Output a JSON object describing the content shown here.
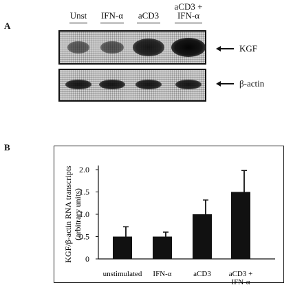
{
  "panel_a": {
    "letter": "A",
    "lanes": [
      "Unst",
      "IFN-α",
      "aCD3",
      "aCD3 +\nIFN-α"
    ],
    "blots": [
      {
        "label": "KGF",
        "intensity": [
          0.35,
          0.4,
          0.85,
          1.0
        ]
      },
      {
        "label": "β-actin",
        "intensity": [
          0.85,
          0.85,
          0.85,
          0.85
        ]
      }
    ]
  },
  "panel_b": {
    "letter": "B",
    "ylabel_line1": "KGF/β-actin RNA transcripts",
    "ylabel_line2": "(arbitrary units)"
  },
  "chart_data": {
    "type": "bar",
    "categories": [
      "unstimulated",
      "IFN-α",
      "aCD3",
      "aCD3 +\nIFN-α"
    ],
    "values": [
      0.5,
      0.5,
      1.0,
      1.5
    ],
    "errors": [
      0.22,
      0.1,
      0.32,
      0.48
    ],
    "ylabel": "KGF/β-actin RNA transcripts (arbitrary units)",
    "ylim": [
      0,
      2.0
    ],
    "yticks": [
      0,
      0.5,
      1.0,
      1.5,
      2.0
    ],
    "ytick_labels": [
      "0",
      "0.5",
      "1.0",
      "1.5",
      "2.0"
    ],
    "bar_color": "#111111",
    "grid": false
  }
}
